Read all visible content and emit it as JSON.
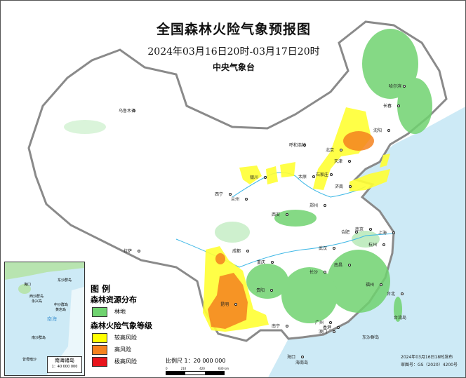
{
  "header": {
    "title": "全国森林火险气象预报图",
    "period": "2024年03月16日20时-03月17日20时",
    "issuer": "中央气象台"
  },
  "legend": {
    "title": "图 例",
    "forest_heading": "森林资源分布",
    "forest_items": [
      {
        "label": "林地",
        "color": "#6fd36f"
      }
    ],
    "risk_heading": "森林火险气象等级",
    "risk_items": [
      {
        "label": "较高风险",
        "color": "#ffff00"
      },
      {
        "label": "高风险",
        "color": "#f5821f"
      },
      {
        "label": "极高风险",
        "color": "#e8141c"
      }
    ]
  },
  "scale": {
    "label": "比例尺 1：20 000 000",
    "ticks": [
      "0",
      "210",
      "420",
      "630 km"
    ]
  },
  "inset": {
    "title": "南海诸岛",
    "scale": "1：40 000 000",
    "labels": [
      "香港",
      "澳门",
      "海口",
      "海南岛",
      "东沙群岛",
      "西沙群岛",
      "永兴岛",
      "中沙群岛",
      "黄岩岛",
      "南海",
      "南沙群岛",
      "曾母暗沙"
    ]
  },
  "footer": {
    "issued": "2024年03月16日18时发布",
    "map_no": "审图号：GS（2020）4200号"
  },
  "cities": [
    "乌鲁木齐",
    "哈尔滨",
    "长春",
    "沈阳",
    "呼和浩特",
    "北京",
    "天津",
    "石家庄",
    "太原",
    "济南",
    "银川",
    "西宁",
    "兰州",
    "拉萨",
    "西安",
    "郑州",
    "合肥",
    "南京",
    "上海",
    "杭州",
    "武汉",
    "成都",
    "重庆",
    "长沙",
    "南昌",
    "福州",
    "台北",
    "贵阳",
    "昆明",
    "南宁",
    "广州",
    "香港",
    "澳门",
    "海口"
  ],
  "places": [
    "台湾岛",
    "东沙群岛",
    "海南岛"
  ],
  "colors": {
    "sea": "#cdeaf6",
    "forest": "#6fd36f",
    "border": "#8a8a8a",
    "river": "#3fb8e6"
  }
}
